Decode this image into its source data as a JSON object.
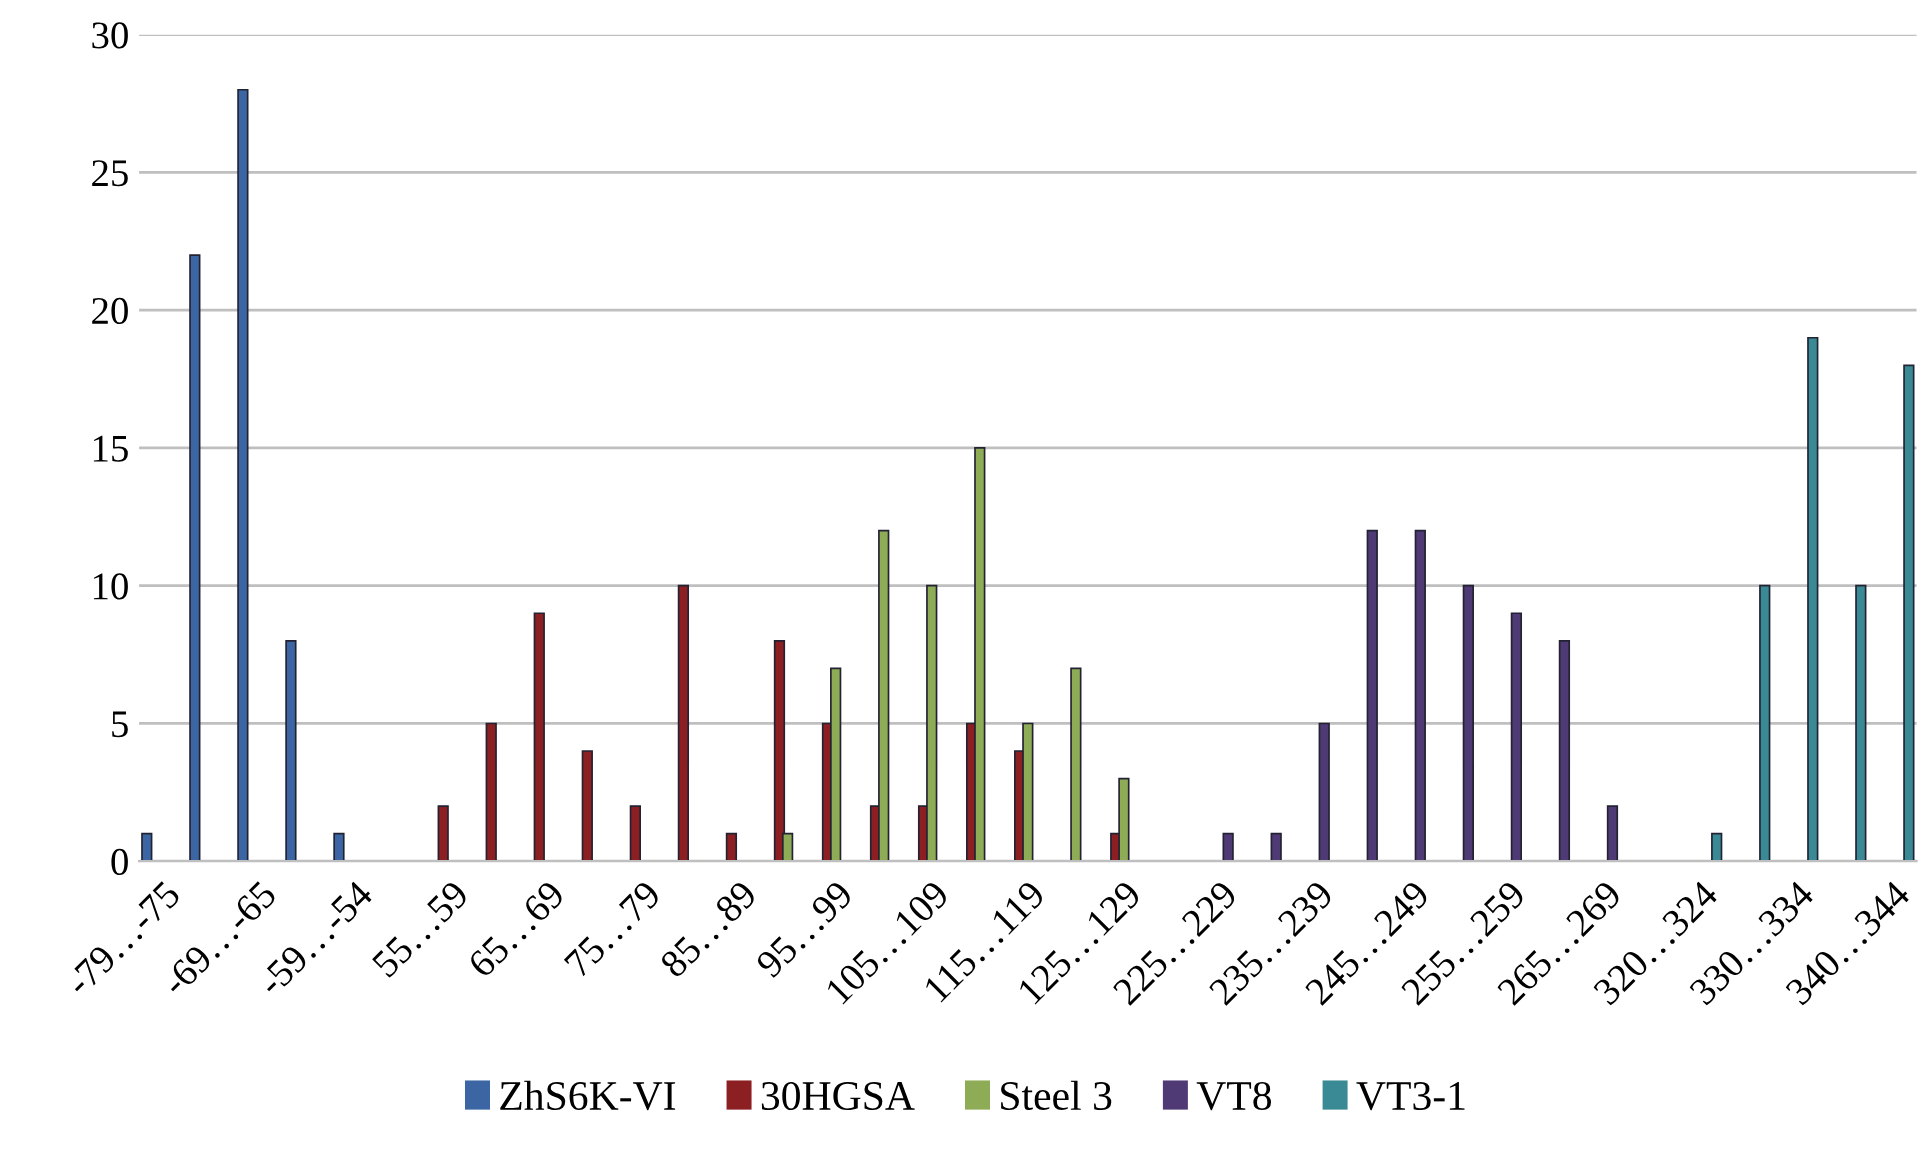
{
  "chart_data": {
    "type": "bar",
    "categories": [
      "-79…-75",
      null,
      "-69…-65",
      null,
      "-59…-54",
      null,
      "55…59",
      null,
      "65…69",
      null,
      "75…79",
      null,
      "85…89",
      null,
      "95…99",
      null,
      "105…109",
      null,
      "115…119",
      null,
      "125…129",
      null,
      "225…229",
      null,
      "235…239",
      null,
      "245…249",
      null,
      "255…259",
      null,
      "265…269",
      null,
      "320…324",
      null,
      "330…334",
      null,
      "340…344"
    ],
    "series": [
      {
        "name": "ZhS6K-VI",
        "color": "#3b66a3",
        "values": [
          1,
          22,
          28,
          8,
          1,
          null,
          null,
          null,
          null,
          null,
          null,
          null,
          null,
          null,
          null,
          null,
          null,
          null,
          null,
          null,
          null,
          null,
          null,
          null,
          null,
          null,
          null,
          null,
          null,
          null,
          null,
          null,
          null,
          null,
          null,
          null,
          null
        ]
      },
      {
        "name": "30HGSA",
        "color": "#8c1f22",
        "values": [
          null,
          null,
          null,
          null,
          null,
          null,
          2,
          5,
          9,
          4,
          2,
          10,
          1,
          8,
          5,
          2,
          2,
          5,
          4,
          null,
          1,
          null,
          null,
          null,
          null,
          null,
          null,
          null,
          null,
          null,
          null,
          null,
          null,
          null,
          null,
          null,
          null
        ]
      },
      {
        "name": "Steel 3",
        "color": "#8dac55",
        "values": [
          null,
          null,
          null,
          null,
          null,
          null,
          null,
          null,
          null,
          null,
          null,
          null,
          null,
          1,
          7,
          12,
          10,
          15,
          5,
          7,
          3,
          null,
          null,
          null,
          null,
          null,
          null,
          null,
          null,
          null,
          null,
          null,
          null,
          null,
          null,
          null,
          null
        ]
      },
      {
        "name": "VT8",
        "color": "#4f3a75",
        "values": [
          null,
          null,
          null,
          null,
          null,
          null,
          null,
          null,
          null,
          null,
          null,
          null,
          null,
          null,
          null,
          null,
          null,
          null,
          null,
          null,
          null,
          null,
          1,
          1,
          5,
          12,
          12,
          10,
          9,
          8,
          2,
          null,
          null,
          null,
          null,
          null,
          null
        ]
      },
      {
        "name": "VT3-1",
        "color": "#3a8a96",
        "values": [
          null,
          null,
          null,
          null,
          null,
          null,
          null,
          null,
          null,
          null,
          null,
          null,
          null,
          null,
          null,
          null,
          null,
          null,
          null,
          null,
          null,
          null,
          null,
          null,
          null,
          null,
          null,
          null,
          null,
          null,
          null,
          null,
          1,
          10,
          19,
          10,
          18
        ]
      }
    ],
    "ylim": [
      0,
      30
    ],
    "yticks": [
      0,
      5,
      10,
      15,
      20,
      25,
      30
    ],
    "grid": "y",
    "legend": "bottom"
  }
}
